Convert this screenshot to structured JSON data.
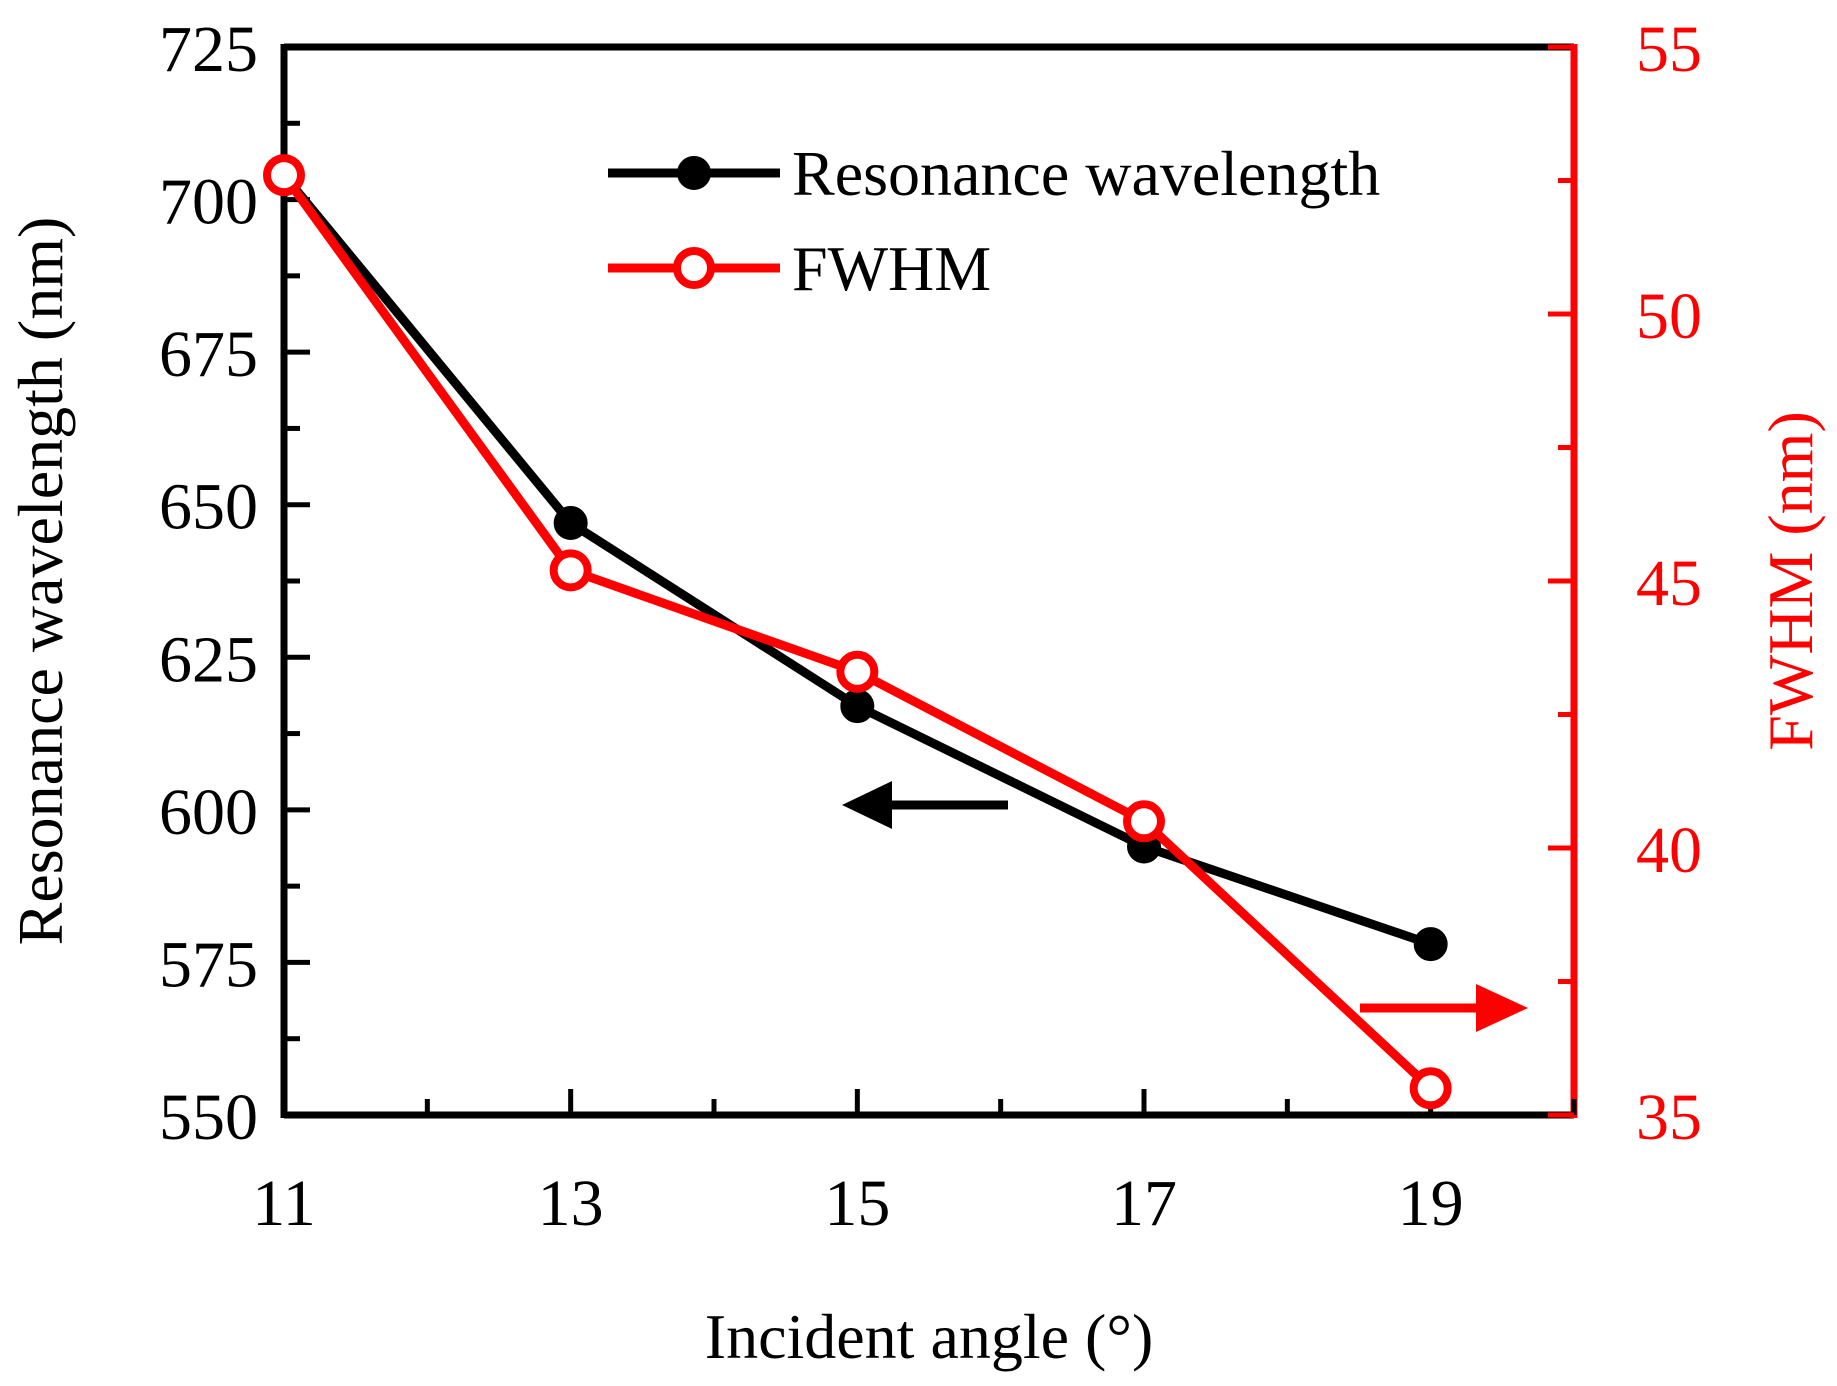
{
  "chart_data": {
    "type": "line",
    "x": [
      11,
      13,
      15,
      17,
      19
    ],
    "xlabel": "Incident angle (°)",
    "xlim": [
      11,
      20
    ],
    "xticks": [
      11,
      13,
      15,
      17,
      19
    ],
    "series": [
      {
        "name": "Resonance wavelength",
        "axis": "left",
        "color": "#000000",
        "marker": "filled-circle",
        "values": [
          704,
          647,
          617,
          594,
          578
        ]
      },
      {
        "name": "FWHM",
        "axis": "right",
        "color": "#ff0000",
        "marker": "open-circle",
        "values": [
          52.6,
          45.2,
          43.3,
          40.5,
          35.5
        ]
      }
    ],
    "left_axis": {
      "label": "Resonance wavelength (nm)",
      "ylim": [
        550,
        725
      ],
      "ticks": [
        550,
        575,
        600,
        625,
        650,
        675,
        700,
        725
      ],
      "color": "#000000"
    },
    "right_axis": {
      "label": "FWHM (nm)",
      "ylim": [
        35,
        55
      ],
      "ticks": [
        35,
        40,
        45,
        50,
        55
      ],
      "color": "#ff0000"
    },
    "legend": {
      "position": "top-right"
    },
    "annotations": [
      {
        "type": "arrow",
        "direction": "left",
        "color": "#000000",
        "meaning": "left axis"
      },
      {
        "type": "arrow",
        "direction": "right",
        "color": "#ff0000",
        "meaning": "right axis"
      }
    ]
  }
}
